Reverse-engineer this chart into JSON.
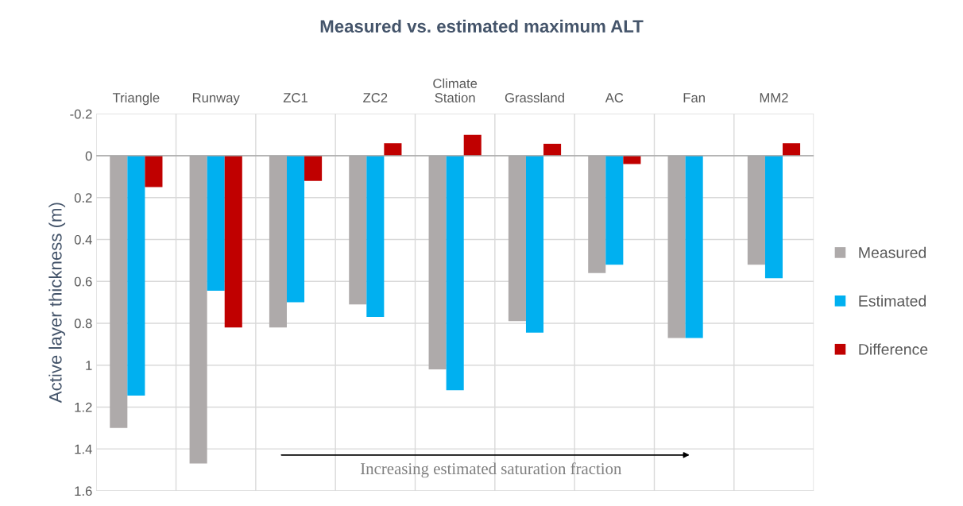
{
  "chart_data": {
    "type": "bar",
    "title": "Measured vs. estimated maximum ALT",
    "ylabel": "Active layer thickness (m)",
    "categories": [
      "Triangle",
      "Runway",
      "ZC1",
      "ZC2",
      "Climate\nStation",
      "Grassland",
      "AC",
      "Fan",
      "MM2"
    ],
    "series": [
      {
        "name": "Measured",
        "color": "#aeaaaa",
        "values": [
          1.3,
          1.47,
          0.82,
          0.71,
          1.02,
          0.79,
          0.56,
          0.87,
          0.52
        ]
      },
      {
        "name": "Estimated",
        "color": "#00b0f0",
        "values": [
          1.145,
          0.645,
          0.7,
          0.77,
          1.12,
          0.845,
          0.52,
          0.87,
          0.585
        ]
      },
      {
        "name": "Difference",
        "color": "#c00000",
        "values": [
          0.15,
          0.82,
          0.12,
          -0.06,
          -0.1,
          -0.057,
          0.04,
          0.0,
          -0.06
        ]
      }
    ],
    "ylim": [
      1.6,
      -0.2
    ],
    "yticks": [
      -0.2,
      0,
      0.2,
      0.4,
      0.6,
      0.8,
      1,
      1.2,
      1.4,
      1.6
    ],
    "grid": true,
    "legend": "right",
    "annotations": [
      "Increasing estimated saturation fraction"
    ]
  }
}
